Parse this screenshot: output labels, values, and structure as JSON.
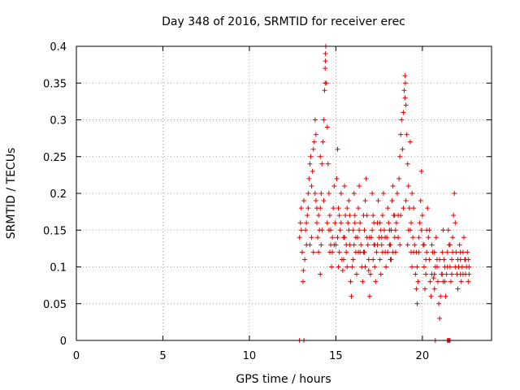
{
  "chart_data": {
    "type": "scatter",
    "title": "Day 348 of 2016, SRMTID for receiver erec",
    "xlabel": "GPS time / hours",
    "ylabel": "SRMTID / TECUs",
    "xlim": [
      0,
      24
    ],
    "ylim": [
      0,
      0.4
    ],
    "x_ticks": [
      0,
      5,
      10,
      15,
      20
    ],
    "x_tick_labels": [
      "0",
      "5",
      "10",
      "15",
      "20"
    ],
    "y_ticks": [
      0,
      0.05,
      0.1,
      0.15,
      0.2,
      0.25,
      0.3,
      0.35,
      0.4
    ],
    "y_tick_labels": [
      "0",
      "0.05",
      "0.1",
      "0.15",
      "0.2",
      "0.25",
      "0.3",
      "0.35",
      "0.4"
    ],
    "grid": true,
    "marker": "+",
    "colors": {
      "points": "#e00000",
      "grid": "#a0a0a0"
    },
    "series": [
      {
        "name": "SRMTID",
        "points": [
          [
            12.9,
            0.0
          ],
          [
            13.15,
            0.0
          ],
          [
            20.75,
            0.0
          ],
          [
            21.45,
            0.0
          ],
          [
            21.5,
            0.0
          ],
          [
            21.55,
            0.0
          ],
          [
            21.6,
            0.0
          ],
          [
            12.9,
            0.14
          ],
          [
            12.95,
            0.16
          ],
          [
            13.0,
            0.18
          ],
          [
            13.05,
            0.12
          ],
          [
            13.1,
            0.08
          ],
          [
            13.12,
            0.095
          ],
          [
            13.15,
            0.19
          ],
          [
            13.2,
            0.11
          ],
          [
            13.25,
            0.15
          ],
          [
            13.3,
            0.13
          ],
          [
            13.35,
            0.17
          ],
          [
            13.4,
            0.2
          ],
          [
            13.45,
            0.22
          ],
          [
            13.5,
            0.24
          ],
          [
            13.55,
            0.25
          ],
          [
            13.6,
            0.21
          ],
          [
            13.65,
            0.23
          ],
          [
            13.7,
            0.26
          ],
          [
            13.75,
            0.27
          ],
          [
            13.8,
            0.3
          ],
          [
            13.85,
            0.19
          ],
          [
            13.9,
            0.16
          ],
          [
            13.95,
            0.14
          ],
          [
            14.0,
            0.12
          ],
          [
            14.05,
            0.15
          ],
          [
            14.1,
            0.18
          ],
          [
            14.15,
            0.2
          ],
          [
            14.2,
            0.24
          ],
          [
            14.25,
            0.27
          ],
          [
            14.3,
            0.3
          ],
          [
            14.35,
            0.34
          ],
          [
            14.38,
            0.37
          ],
          [
            14.4,
            0.39
          ],
          [
            14.42,
            0.4
          ],
          [
            14.45,
            0.35
          ],
          [
            14.5,
            0.29
          ],
          [
            14.55,
            0.24
          ],
          [
            14.6,
            0.2
          ],
          [
            14.65,
            0.17
          ],
          [
            14.7,
            0.13
          ],
          [
            14.75,
            0.1
          ],
          [
            14.8,
            0.14
          ],
          [
            14.85,
            0.18
          ],
          [
            14.9,
            0.21
          ],
          [
            14.95,
            0.16
          ],
          [
            15.0,
            0.13
          ],
          [
            15.05,
            0.22
          ],
          [
            15.1,
            0.26
          ],
          [
            15.15,
            0.18
          ],
          [
            15.2,
            0.12
          ],
          [
            15.25,
            0.15
          ],
          [
            15.3,
            0.2
          ],
          [
            15.35,
            0.11
          ],
          [
            15.4,
            0.095
          ],
          [
            15.45,
            0.14
          ],
          [
            15.5,
            0.21
          ],
          [
            15.55,
            0.17
          ],
          [
            15.6,
            0.12
          ],
          [
            15.65,
            0.1
          ],
          [
            15.7,
            0.16
          ],
          [
            15.75,
            0.19
          ],
          [
            15.8,
            0.13
          ],
          [
            15.85,
            0.08
          ],
          [
            15.9,
            0.06
          ],
          [
            15.95,
            0.1
          ],
          [
            16.0,
            0.15
          ],
          [
            16.05,
            0.2
          ],
          [
            16.1,
            0.17
          ],
          [
            16.15,
            0.12
          ],
          [
            16.2,
            0.09
          ],
          [
            16.25,
            0.14
          ],
          [
            16.3,
            0.18
          ],
          [
            16.35,
            0.21
          ],
          [
            16.4,
            0.16
          ],
          [
            16.45,
            0.13
          ],
          [
            16.5,
            0.1
          ],
          [
            16.55,
            0.08
          ],
          [
            16.6,
            0.12
          ],
          [
            16.65,
            0.15
          ],
          [
            16.7,
            0.19
          ],
          [
            16.75,
            0.22
          ],
          [
            16.8,
            0.17
          ],
          [
            16.85,
            0.13
          ],
          [
            16.9,
            0.095
          ],
          [
            16.95,
            0.06
          ],
          [
            17.0,
            0.09
          ],
          [
            17.05,
            0.14
          ],
          [
            17.1,
            0.2
          ],
          [
            17.15,
            0.17
          ],
          [
            17.2,
            0.13
          ],
          [
            17.25,
            0.1
          ],
          [
            17.3,
            0.08
          ],
          [
            17.35,
            0.12
          ],
          [
            17.4,
            0.16
          ],
          [
            17.45,
            0.19
          ],
          [
            17.5,
            0.14
          ],
          [
            17.55,
            0.11
          ],
          [
            17.6,
            0.09
          ],
          [
            17.65,
            0.13
          ],
          [
            17.7,
            0.17
          ],
          [
            17.75,
            0.2
          ],
          [
            17.8,
            0.15
          ],
          [
            17.85,
            0.12
          ],
          [
            17.9,
            0.1
          ],
          [
            17.95,
            0.14
          ],
          [
            18.0,
            0.18
          ],
          [
            18.05,
            0.16
          ],
          [
            18.1,
            0.13
          ],
          [
            18.15,
            0.11
          ],
          [
            18.2,
            0.15
          ],
          [
            18.25,
            0.19
          ],
          [
            18.3,
            0.21
          ],
          [
            18.35,
            0.17
          ],
          [
            18.4,
            0.14
          ],
          [
            18.45,
            0.12
          ],
          [
            18.5,
            0.16
          ],
          [
            18.55,
            0.2
          ],
          [
            18.6,
            0.17
          ],
          [
            18.65,
            0.22
          ],
          [
            18.7,
            0.25
          ],
          [
            18.75,
            0.28
          ],
          [
            18.8,
            0.3
          ],
          [
            18.85,
            0.26
          ],
          [
            18.9,
            0.31
          ],
          [
            18.95,
            0.34
          ],
          [
            19.0,
            0.36
          ],
          [
            19.05,
            0.32
          ],
          [
            19.1,
            0.28
          ],
          [
            19.15,
            0.24
          ],
          [
            19.2,
            0.21
          ],
          [
            19.25,
            0.18
          ],
          [
            19.3,
            0.15
          ],
          [
            19.35,
            0.12
          ],
          [
            19.4,
            0.1
          ],
          [
            19.45,
            0.14
          ],
          [
            19.5,
            0.18
          ],
          [
            19.55,
            0.13
          ],
          [
            19.6,
            0.09
          ],
          [
            19.65,
            0.07
          ],
          [
            19.7,
            0.05
          ],
          [
            19.75,
            0.08
          ],
          [
            19.8,
            0.12
          ],
          [
            19.85,
            0.16
          ],
          [
            19.9,
            0.19
          ],
          [
            19.95,
            0.23
          ],
          [
            20.0,
            0.17
          ],
          [
            20.05,
            0.13
          ],
          [
            20.1,
            0.1
          ],
          [
            20.15,
            0.07
          ],
          [
            20.2,
            0.11
          ],
          [
            20.25,
            0.15
          ],
          [
            20.3,
            0.18
          ],
          [
            20.35,
            0.14
          ],
          [
            20.4,
            0.11
          ],
          [
            20.45,
            0.08
          ],
          [
            20.5,
            0.06
          ],
          [
            20.55,
            0.09
          ],
          [
            20.6,
            0.12
          ],
          [
            20.65,
            0.085
          ],
          [
            20.7,
            0.07
          ],
          [
            20.75,
            0.1
          ],
          [
            20.8,
            0.14
          ],
          [
            20.85,
            0.11
          ],
          [
            20.9,
            0.08
          ],
          [
            20.95,
            0.05
          ],
          [
            21.0,
            0.03
          ],
          [
            21.05,
            0.06
          ],
          [
            21.1,
            0.09
          ],
          [
            21.15,
            0.12
          ],
          [
            21.2,
            0.15
          ],
          [
            21.25,
            0.11
          ],
          [
            21.3,
            0.08
          ],
          [
            21.35,
            0.06
          ],
          [
            21.4,
            0.09
          ],
          [
            21.45,
            0.12
          ],
          [
            21.5,
            0.15
          ],
          [
            21.55,
            0.13
          ],
          [
            21.6,
            0.1
          ],
          [
            21.65,
            0.08
          ],
          [
            21.7,
            0.11
          ],
          [
            21.75,
            0.14
          ],
          [
            21.8,
            0.17
          ],
          [
            21.85,
            0.2
          ],
          [
            21.9,
            0.16
          ],
          [
            21.95,
            0.12
          ],
          [
            22.0,
            0.09
          ],
          [
            22.05,
            0.07
          ],
          [
            22.1,
            0.1
          ],
          [
            22.15,
            0.13
          ],
          [
            22.2,
            0.11
          ],
          [
            22.25,
            0.08
          ],
          [
            22.3,
            0.1
          ],
          [
            22.35,
            0.12
          ],
          [
            22.4,
            0.14
          ],
          [
            22.45,
            0.11
          ],
          [
            22.5,
            0.09
          ],
          [
            22.55,
            0.1
          ],
          [
            22.6,
            0.12
          ],
          [
            22.65,
            0.08
          ],
          [
            22.7,
            0.1
          ],
          [
            13.7,
            0.12
          ],
          [
            14.1,
            0.09
          ],
          [
            14.6,
            0.15
          ],
          [
            15.3,
            0.16
          ],
          [
            15.6,
            0.13
          ],
          [
            16.0,
            0.11
          ],
          [
            16.4,
            0.12
          ],
          [
            16.8,
            0.14
          ],
          [
            17.2,
            0.16
          ],
          [
            17.6,
            0.15
          ],
          [
            18.0,
            0.12
          ],
          [
            18.4,
            0.17
          ],
          [
            13.3,
            0.16
          ],
          [
            13.6,
            0.14
          ],
          [
            13.9,
            0.18
          ],
          [
            14.2,
            0.15
          ],
          [
            14.8,
            0.12
          ],
          [
            15.1,
            0.14
          ],
          [
            15.45,
            0.11
          ],
          [
            15.75,
            0.15
          ],
          [
            16.05,
            0.13
          ],
          [
            16.35,
            0.15
          ],
          [
            16.65,
            0.12
          ],
          [
            16.95,
            0.14
          ],
          [
            17.25,
            0.13
          ],
          [
            17.55,
            0.16
          ],
          [
            17.85,
            0.14
          ],
          [
            18.15,
            0.13
          ],
          [
            18.45,
            0.15
          ],
          [
            18.75,
            0.17
          ],
          [
            19.05,
            0.19
          ],
          [
            19.35,
            0.16
          ],
          [
            19.65,
            0.12
          ],
          [
            19.95,
            0.15
          ],
          [
            20.25,
            0.12
          ],
          [
            20.55,
            0.13
          ],
          [
            20.85,
            0.1
          ],
          [
            21.15,
            0.09
          ],
          [
            21.45,
            0.1
          ],
          [
            21.75,
            0.12
          ],
          [
            22.05,
            0.11
          ],
          [
            22.35,
            0.09
          ],
          [
            22.65,
            0.11
          ],
          [
            13.4,
            0.18
          ],
          [
            13.8,
            0.2
          ],
          [
            14.0,
            0.17
          ],
          [
            14.3,
            0.19
          ],
          [
            14.5,
            0.16
          ],
          [
            14.7,
            0.15
          ],
          [
            14.9,
            0.13
          ],
          [
            15.2,
            0.17
          ],
          [
            15.5,
            0.14
          ],
          [
            15.8,
            0.17
          ],
          [
            16.1,
            0.16
          ],
          [
            16.3,
            0.12
          ],
          [
            16.6,
            0.17
          ],
          [
            16.9,
            0.11
          ],
          [
            17.1,
            0.15
          ],
          [
            17.4,
            0.13
          ],
          [
            17.7,
            0.12
          ],
          [
            18.1,
            0.15
          ],
          [
            18.3,
            0.12
          ],
          [
            18.6,
            0.14
          ],
          [
            18.9,
            0.18
          ],
          [
            19.2,
            0.15
          ],
          [
            19.5,
            0.12
          ],
          [
            19.8,
            0.14
          ],
          [
            20.1,
            0.13
          ],
          [
            20.4,
            0.15
          ],
          [
            20.7,
            0.12
          ],
          [
            21.0,
            0.11
          ],
          [
            21.3,
            0.1
          ],
          [
            21.6,
            0.13
          ],
          [
            21.9,
            0.1
          ],
          [
            22.2,
            0.12
          ],
          [
            22.5,
            0.11
          ],
          [
            13.0,
            0.15
          ],
          [
            13.5,
            0.13
          ],
          [
            14.15,
            0.13
          ],
          [
            14.65,
            0.12
          ],
          [
            15.15,
            0.1
          ],
          [
            15.65,
            0.18
          ],
          [
            16.15,
            0.14
          ],
          [
            16.7,
            0.1
          ],
          [
            17.15,
            0.11
          ],
          [
            17.65,
            0.14
          ],
          [
            18.2,
            0.11
          ],
          [
            18.7,
            0.13
          ],
          [
            19.15,
            0.13
          ],
          [
            19.7,
            0.1
          ],
          [
            20.2,
            0.09
          ],
          [
            20.7,
            0.09
          ],
          [
            21.2,
            0.08
          ],
          [
            21.7,
            0.09
          ],
          [
            22.2,
            0.09
          ],
          [
            22.7,
            0.09
          ],
          [
            14.38,
            0.35
          ],
          [
            14.4,
            0.38
          ],
          [
            19.02,
            0.35
          ],
          [
            19.0,
            0.33
          ],
          [
            14.1,
            0.25
          ],
          [
            13.85,
            0.28
          ],
          [
            19.4,
            0.2
          ],
          [
            19.3,
            0.27
          ]
        ]
      }
    ]
  }
}
